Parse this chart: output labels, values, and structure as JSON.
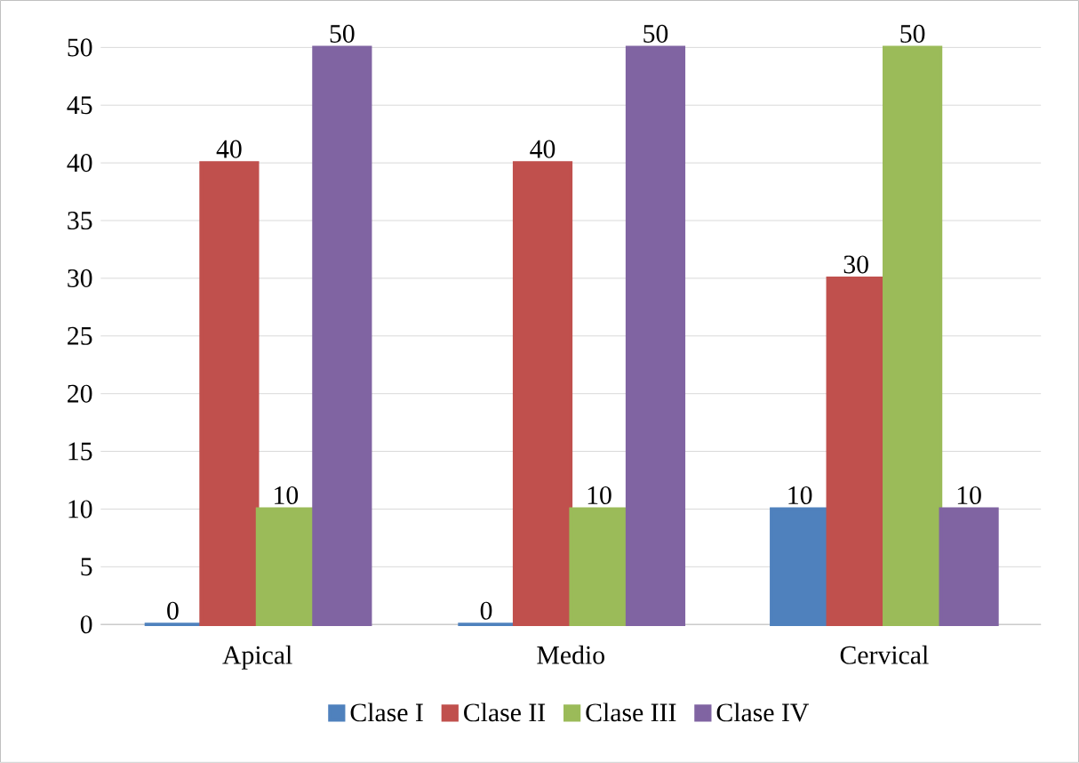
{
  "chart_data": {
    "type": "bar",
    "categories": [
      "Apical",
      "Medio",
      "Cervical"
    ],
    "series": [
      {
        "name": "Clase I",
        "color": "#4f81bd",
        "values": [
          0,
          0,
          10
        ]
      },
      {
        "name": "Clase II",
        "color": "#c0504d",
        "values": [
          40,
          40,
          30
        ]
      },
      {
        "name": "Clase III",
        "color": "#9bbb59",
        "values": [
          10,
          10,
          50
        ]
      },
      {
        "name": "Clase IV",
        "color": "#8064a2",
        "values": [
          50,
          50,
          10
        ]
      }
    ],
    "ylim": [
      0,
      50
    ],
    "yticks": [
      0,
      5,
      10,
      15,
      20,
      25,
      30,
      35,
      40,
      45,
      50
    ],
    "grid": "y",
    "legend": "bottom",
    "data_labels": true
  }
}
